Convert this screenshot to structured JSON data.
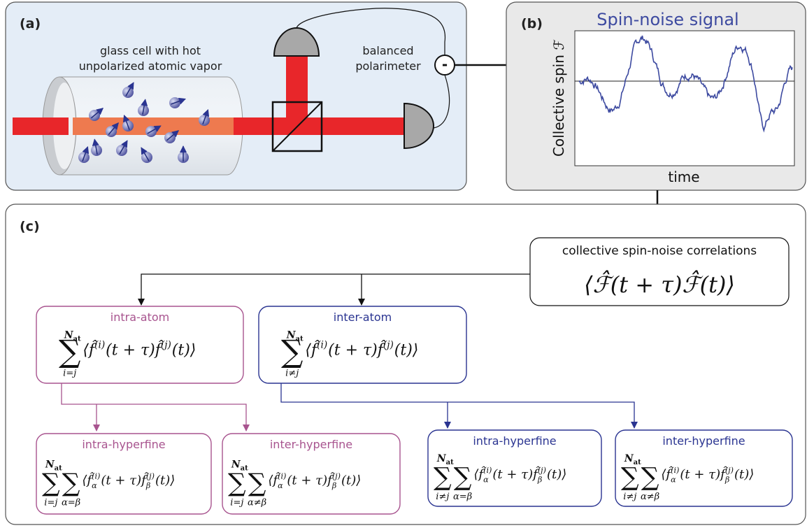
{
  "panel_a": {
    "label": "(a)",
    "cell_caption": [
      "glass cell with hot",
      "unpolarized atomic vapor"
    ],
    "polarimeter_caption": [
      "balanced",
      "polarimeter"
    ],
    "minus": "-"
  },
  "panel_b": {
    "label": "(b)",
    "title": "Spin-noise signal",
    "y_label": "Collective spin ℱ",
    "x_label": "time"
  },
  "panel_c": {
    "label": "(c)",
    "top": {
      "caption": "collective spin-noise correlations",
      "formula": "⟨ℱ̂(t + τ)ℱ̂(t)⟩"
    },
    "boxes": [
      {
        "title": "intra-atom",
        "sums": [
          {
            "symbol": "∑",
            "top": "N",
            "top_sub": "at",
            "bottom": "i=j"
          }
        ],
        "formula": [
          "⟨f̂",
          {
            "sup": "(i)"
          },
          "(t + τ)f̂",
          {
            "sup": "(j)"
          },
          "(t)⟩"
        ]
      },
      {
        "title": "inter-atom",
        "sums": [
          {
            "symbol": "∑",
            "top": "N",
            "top_sub": "at",
            "bottom": "i≠j"
          }
        ],
        "formula": [
          "⟨f̂",
          {
            "sup": "(i)"
          },
          "(t + τ)f̂",
          {
            "sup": "(j)"
          },
          "(t)⟩"
        ]
      },
      {
        "title": "intra-hyperfine",
        "sums": [
          {
            "symbol": "∑",
            "top": "N",
            "top_sub": "at",
            "bottom": "i=j"
          },
          {
            "symbol": "∑",
            "bottom": "α=β"
          }
        ],
        "formula": [
          "⟨f̂",
          {
            "sup": "(i)",
            "sub": "α"
          },
          "(t + τ)f̂",
          {
            "sup": "(j)",
            "sub": "β"
          },
          "(t)⟩"
        ]
      },
      {
        "title": "inter-hyperfine",
        "sums": [
          {
            "symbol": "∑",
            "top": "N",
            "top_sub": "at",
            "bottom": "i=j"
          },
          {
            "symbol": "∑",
            "bottom": "α≠β"
          }
        ],
        "formula": [
          "⟨f̂",
          {
            "sup": "(i)",
            "sub": "α"
          },
          "(t + τ)f̂",
          {
            "sup": "(j)",
            "sub": "β"
          },
          "(t)⟩"
        ]
      },
      {
        "title": "intra-hyperfine",
        "sums": [
          {
            "symbol": "∑",
            "top": "N",
            "top_sub": "at",
            "bottom": "i≠j"
          },
          {
            "symbol": "∑",
            "bottom": "α=β"
          }
        ],
        "formula": [
          "⟨f̂",
          {
            "sup": "(i)",
            "sub": "α"
          },
          "(t + τ)f̂",
          {
            "sup": "(j)",
            "sub": "β"
          },
          "(t)⟩"
        ]
      },
      {
        "title": "inter-hyperfine",
        "sums": [
          {
            "symbol": "∑",
            "top": "N",
            "top_sub": "at",
            "bottom": "i≠j"
          },
          {
            "symbol": "∑",
            "bottom": "α≠β"
          }
        ],
        "formula": [
          "⟨f̂",
          {
            "sup": "(i)",
            "sub": "α"
          },
          "(t + τ)f̂",
          {
            "sup": "(j)",
            "sub": "β"
          },
          "(t)⟩"
        ]
      }
    ]
  }
}
